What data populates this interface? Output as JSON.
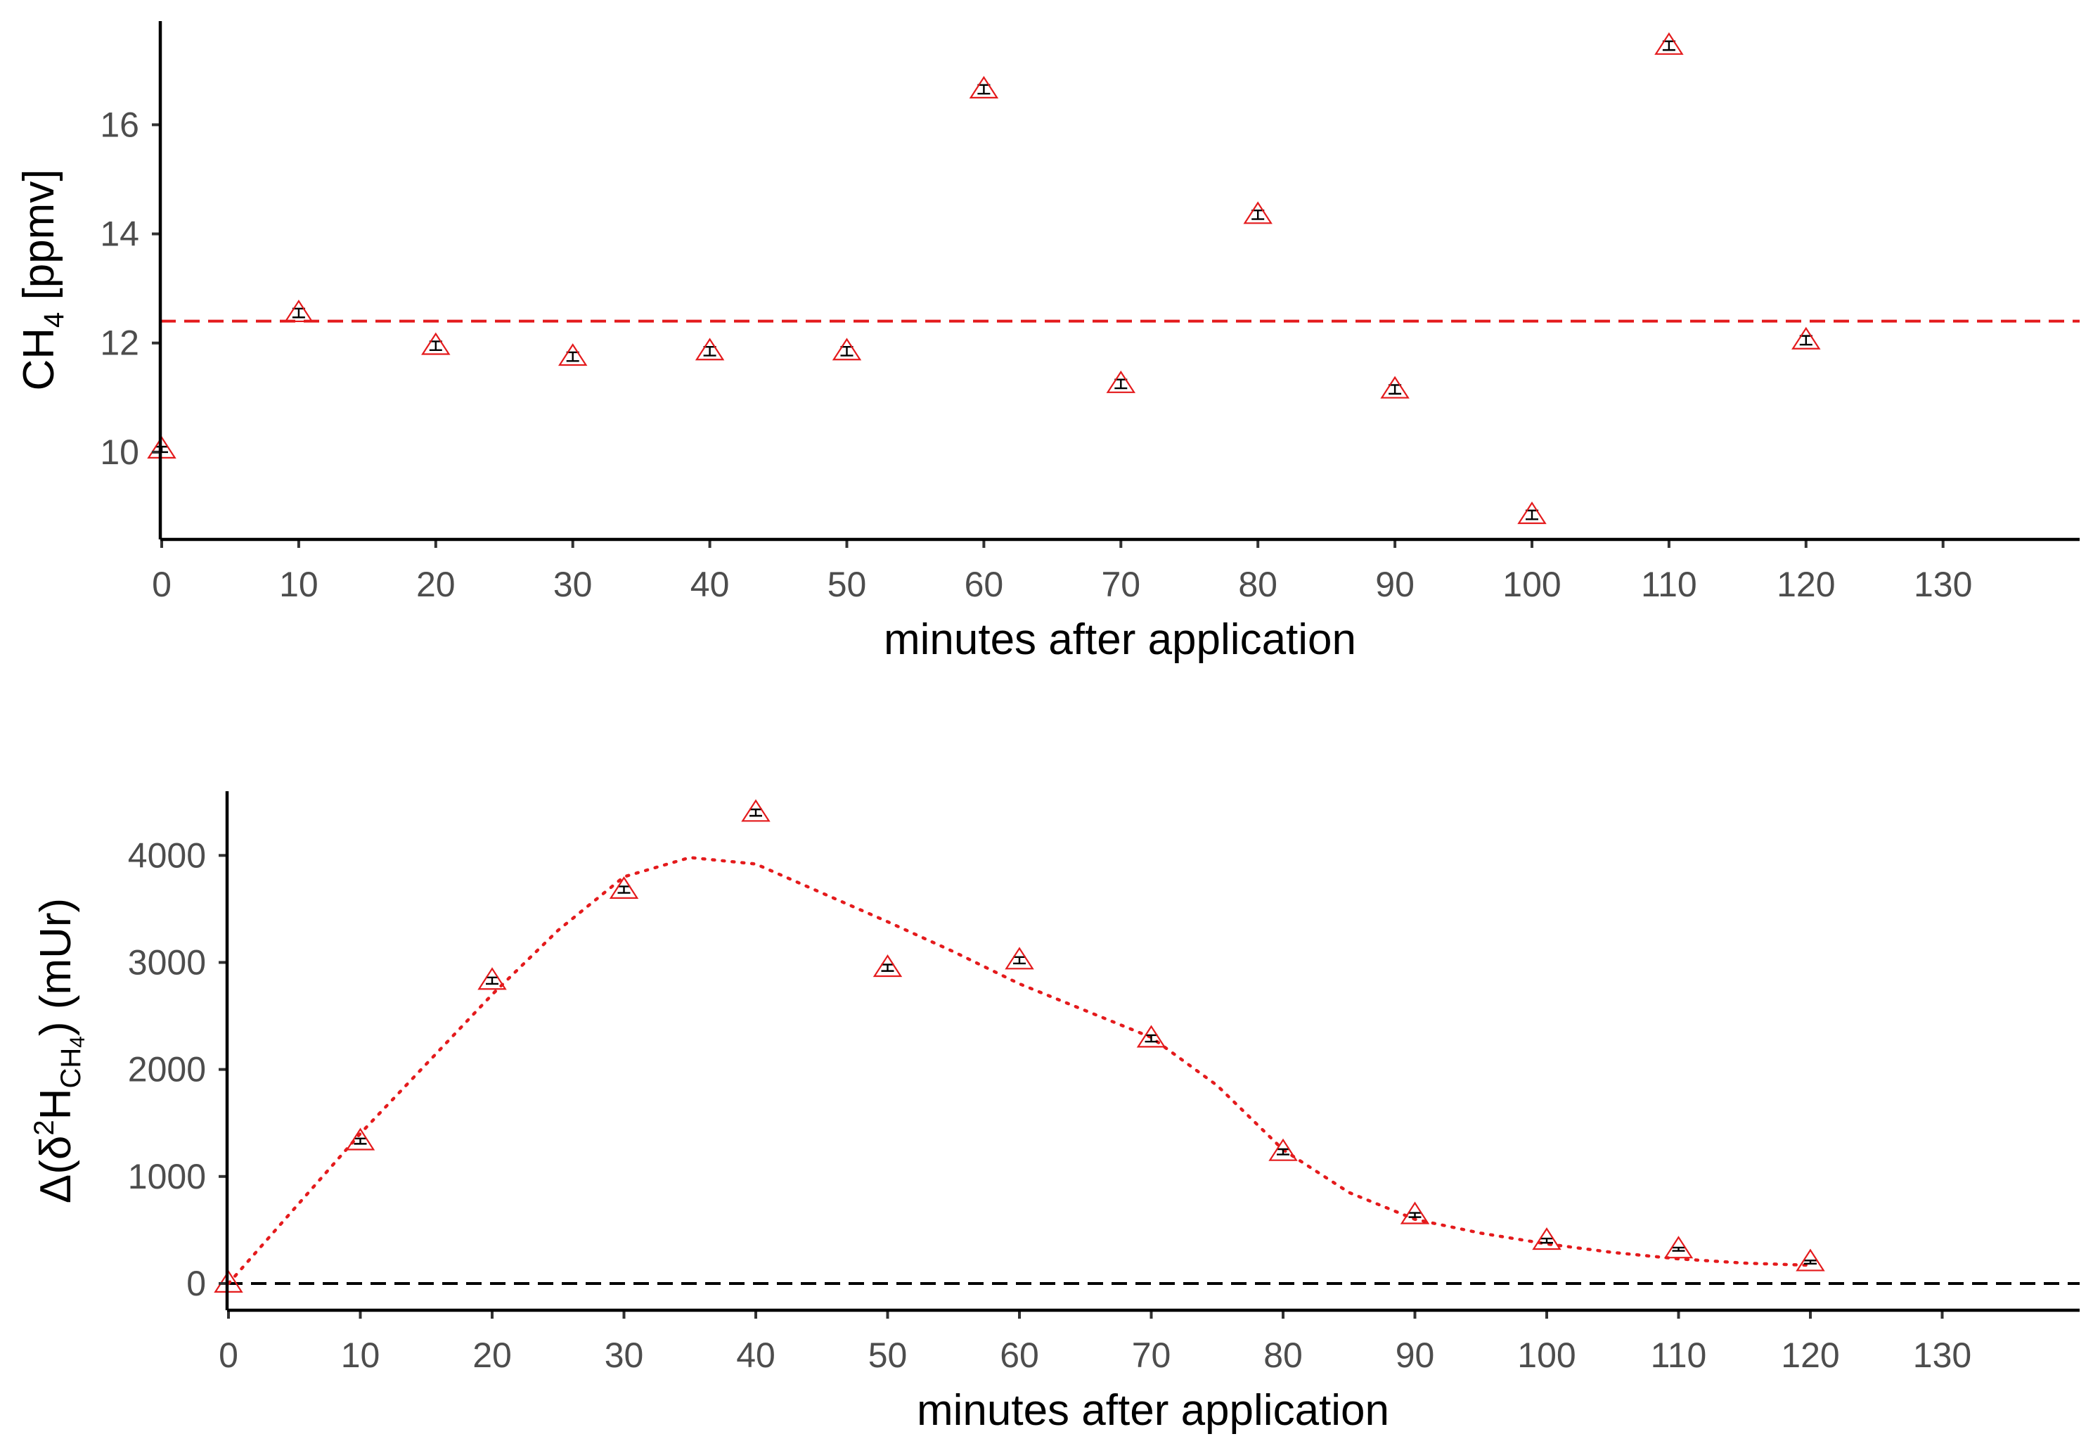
{
  "colors": {
    "series": "#e41a1c",
    "zero_line": "#000000",
    "axis": "#000000",
    "tick_text": "#4d4d4d"
  },
  "chart_data": [
    {
      "type": "scatter",
      "xlabel": "minutes after application",
      "ylabel_parts": {
        "main": "CH",
        "sub": "4",
        "unit": " [ppmv]"
      },
      "xlim": [
        0,
        140
      ],
      "ylim": [
        8.4,
        17.9
      ],
      "x_ticks": [
        0,
        10,
        20,
        30,
        40,
        50,
        60,
        70,
        80,
        90,
        100,
        110,
        120,
        130
      ],
      "x_tick_labels": [
        "0",
        "10",
        "20",
        "30",
        "40",
        "50",
        "60",
        "70",
        "80",
        "90",
        "100",
        "110",
        "120",
        "130"
      ],
      "y_ticks": [
        10,
        12,
        14,
        16
      ],
      "y_tick_labels": [
        "10",
        "12",
        "14",
        "16"
      ],
      "grid": false,
      "marker": "open-triangle",
      "x": [
        0,
        10,
        20,
        30,
        40,
        50,
        60,
        70,
        80,
        90,
        100,
        110,
        120
      ],
      "y": [
        10.05,
        12.55,
        11.95,
        11.75,
        11.85,
        11.85,
        16.65,
        11.25,
        14.35,
        11.15,
        8.85,
        17.45,
        12.05
      ],
      "error": [
        0.05,
        0.08,
        0.08,
        0.08,
        0.08,
        0.08,
        0.08,
        0.08,
        0.08,
        0.08,
        0.08,
        0.08,
        0.08
      ],
      "reference_line": {
        "y": 12.4,
        "style": "dashed",
        "color": "#e41a1c"
      }
    },
    {
      "type": "scatter",
      "xlabel": "minutes after application",
      "ylabel_parts": {
        "pre": "Δ(δ",
        "sup": "2",
        "mid": "H",
        "sub": "CH",
        "sub2": "4",
        "unit": ") (mUr)"
      },
      "xlim": [
        0,
        140
      ],
      "ylim": [
        -250,
        4600
      ],
      "x_ticks": [
        0,
        10,
        20,
        30,
        40,
        50,
        60,
        70,
        80,
        90,
        100,
        110,
        120,
        130
      ],
      "x_tick_labels": [
        "0",
        "10",
        "20",
        "30",
        "40",
        "50",
        "60",
        "70",
        "80",
        "90",
        "100",
        "110",
        "120",
        "130"
      ],
      "y_ticks": [
        0,
        1000,
        2000,
        3000,
        4000
      ],
      "y_tick_labels": [
        "0",
        "1000",
        "2000",
        "3000",
        "4000"
      ],
      "grid": false,
      "marker": "open-triangle",
      "x": [
        0,
        10,
        20,
        30,
        40,
        50,
        60,
        70,
        80,
        90,
        100,
        110,
        120
      ],
      "y": [
        0,
        1330,
        2830,
        3680,
        4400,
        2950,
        3020,
        2290,
        1230,
        640,
        400,
        320,
        200
      ],
      "error": [
        0,
        25,
        30,
        30,
        30,
        30,
        30,
        30,
        25,
        20,
        20,
        15,
        15
      ],
      "zero_line": {
        "y": 0,
        "style": "dashed",
        "color": "#000000"
      },
      "smooth_fit": {
        "style": "dotted",
        "color": "#e41a1c",
        "x": [
          0,
          5,
          10,
          15,
          20,
          25,
          30,
          35,
          40,
          45,
          50,
          55,
          60,
          65,
          70,
          75,
          80,
          85,
          90,
          95,
          100,
          105,
          110,
          115,
          120
        ],
        "y": [
          0,
          700,
          1400,
          2050,
          2700,
          3300,
          3800,
          3980,
          3920,
          3650,
          3380,
          3100,
          2800,
          2550,
          2300,
          1850,
          1250,
          850,
          600,
          470,
          370,
          290,
          230,
          190,
          170
        ]
      }
    }
  ]
}
